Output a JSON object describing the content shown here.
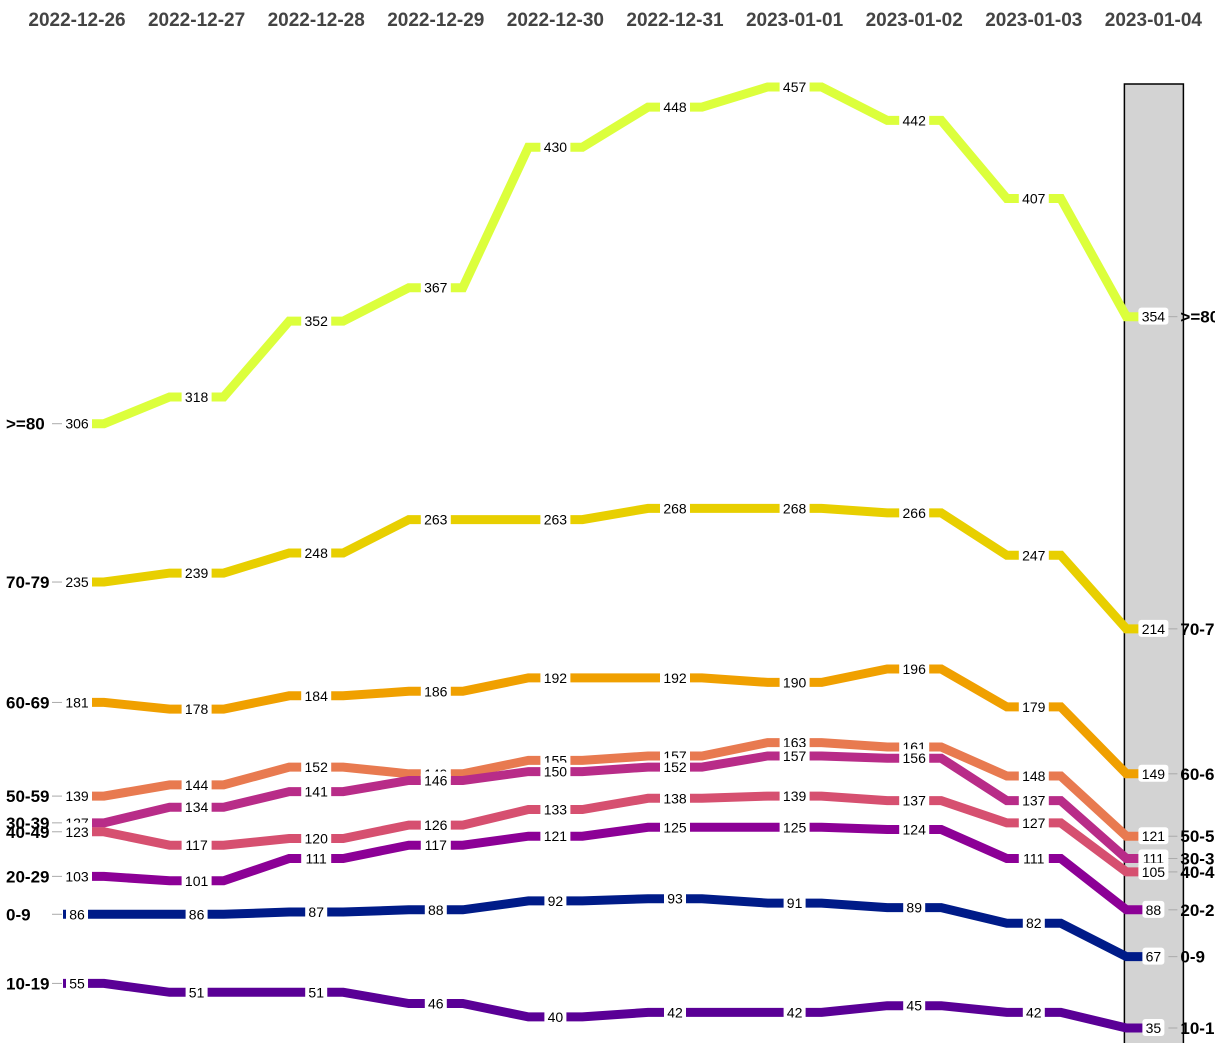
{
  "chart_data": {
    "type": "line",
    "x": [
      "2022-12-26",
      "2022-12-27",
      "2022-12-28",
      "2022-12-29",
      "2022-12-30",
      "2022-12-31",
      "2023-01-01",
      "2023-01-02",
      "2023-01-03",
      "2023-01-04"
    ],
    "highlighted_x": "2023-01-04",
    "series": [
      {
        "name": ">=80",
        "color": "#dcff3c",
        "values": [
          306,
          318,
          352,
          367,
          430,
          448,
          457,
          442,
          407,
          354
        ]
      },
      {
        "name": "70-79",
        "color": "#e8cf00",
        "values": [
          235,
          239,
          248,
          263,
          263,
          268,
          268,
          266,
          247,
          214
        ]
      },
      {
        "name": "60-69",
        "color": "#f0a000",
        "values": [
          181,
          178,
          184,
          186,
          192,
          192,
          190,
          196,
          179,
          149
        ]
      },
      {
        "name": "50-59",
        "color": "#e87a50",
        "values": [
          139,
          144,
          152,
          149,
          155,
          157,
          163,
          161,
          148,
          121
        ]
      },
      {
        "name": "30-39",
        "color": "#b82c88",
        "values": [
          127,
          134,
          141,
          146,
          150,
          152,
          157,
          156,
          137,
          111
        ]
      },
      {
        "name": "40-49",
        "color": "#d65070",
        "values": [
          123,
          117,
          120,
          126,
          133,
          138,
          139,
          137,
          127,
          105
        ]
      },
      {
        "name": "20-29",
        "color": "#8c0096",
        "values": [
          103,
          101,
          111,
          117,
          121,
          125,
          125,
          124,
          111,
          88
        ]
      },
      {
        "name": "0-9",
        "color": "#001b88",
        "values": [
          86,
          86,
          87,
          88,
          92,
          93,
          91,
          89,
          82,
          67
        ]
      },
      {
        "name": "10-19",
        "color": "#5a0096",
        "values": [
          55,
          51,
          51,
          46,
          40,
          42,
          42,
          45,
          42,
          35
        ]
      }
    ],
    "ylim": [
      35,
      457
    ],
    "grid": false,
    "legend": "direct labels at both ends"
  }
}
